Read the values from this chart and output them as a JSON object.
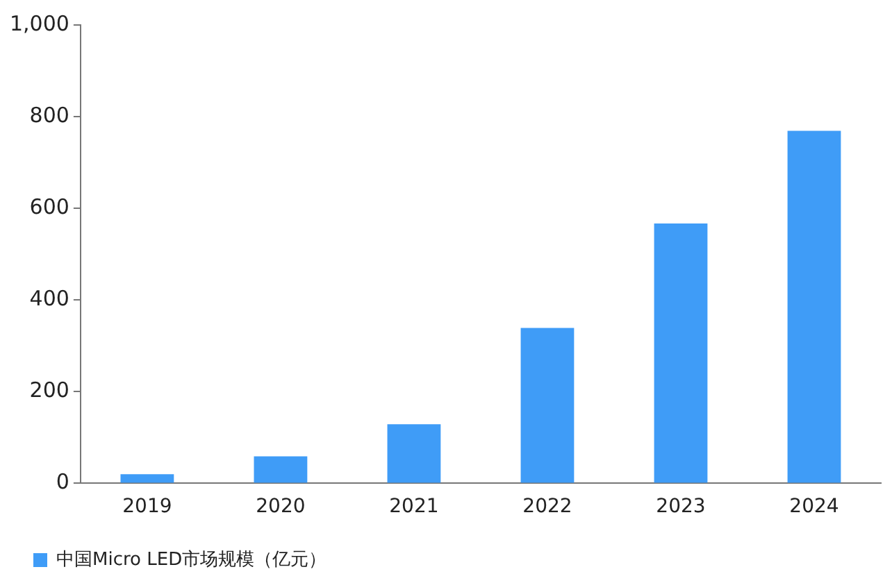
{
  "chart_data": {
    "type": "bar",
    "categories": [
      "2019",
      "2020",
      "2021",
      "2022",
      "2023",
      "2024"
    ],
    "series": [
      {
        "name": "中国Micro LED市场规模（亿元）",
        "color": "#3f9cf7",
        "values": [
          20,
          59,
          129,
          339,
          567,
          769
        ]
      }
    ],
    "ylim": [
      0,
      1000
    ],
    "yticks": [
      0,
      200,
      400,
      600,
      800,
      {
        "value": 1000,
        "label": "1,000"
      }
    ],
    "grid": false,
    "legend": "bottom"
  }
}
